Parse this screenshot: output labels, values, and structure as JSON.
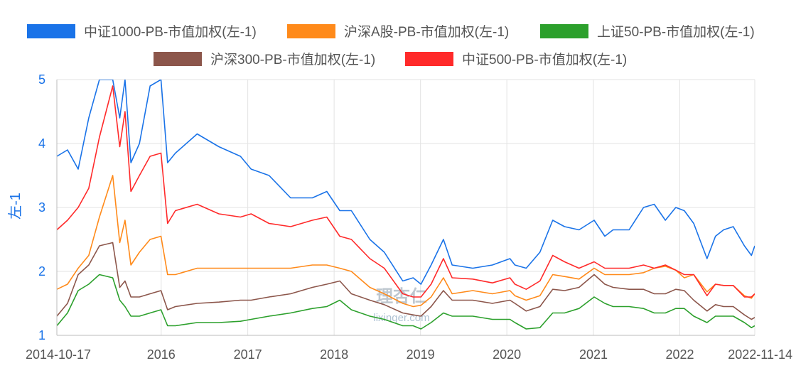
{
  "chart_data": {
    "type": "line",
    "ylabel": "左-1",
    "ylim": [
      1,
      5
    ],
    "yticks": [
      "1",
      "2",
      "3",
      "4",
      "5"
    ],
    "xlim": [
      "2014-10-17",
      "2022-11-14"
    ],
    "xticks": [
      {
        "date": "2014-10-17",
        "label": "2014-10-17"
      },
      {
        "date": "2016-01-01",
        "label": "2016"
      },
      {
        "date": "2017-01-01",
        "label": "2017"
      },
      {
        "date": "2018-01-01",
        "label": "2018"
      },
      {
        "date": "2019-01-01",
        "label": "2019"
      },
      {
        "date": "2020-01-01",
        "label": "2020"
      },
      {
        "date": "2021-01-01",
        "label": "2021"
      },
      {
        "date": "2022-01-01",
        "label": "2022"
      },
      {
        "date": "2022-11-14",
        "label": "2022-11-14"
      }
    ],
    "grid": true,
    "legend_position": "top",
    "watermark": {
      "cn": "理杏仁",
      "en": "lixinger.com"
    },
    "x": [
      "2014-10-17",
      "2014-12-01",
      "2015-01-15",
      "2015-03-01",
      "2015-04-15",
      "2015-06-10",
      "2015-07-10",
      "2015-08-01",
      "2015-08-26",
      "2015-10-01",
      "2015-11-15",
      "2015-12-31",
      "2016-01-28",
      "2016-03-01",
      "2016-06-01",
      "2016-09-01",
      "2016-12-01",
      "2017-01-15",
      "2017-04-01",
      "2017-07-01",
      "2017-10-01",
      "2017-12-01",
      "2018-01-25",
      "2018-03-15",
      "2018-06-01",
      "2018-08-01",
      "2018-10-18",
      "2018-12-01",
      "2019-01-03",
      "2019-02-15",
      "2019-04-08",
      "2019-05-15",
      "2019-08-10",
      "2019-11-01",
      "2020-01-14",
      "2020-02-04",
      "2020-03-23",
      "2020-05-20",
      "2020-07-13",
      "2020-09-01",
      "2020-11-01",
      "2021-01-04",
      "2021-02-18",
      "2021-03-25",
      "2021-06-01",
      "2021-08-01",
      "2021-09-15",
      "2021-11-01",
      "2021-12-15",
      "2022-01-20",
      "2022-03-01",
      "2022-04-26",
      "2022-06-01",
      "2022-07-05",
      "2022-08-15",
      "2022-10-01",
      "2022-10-31",
      "2022-11-14"
    ],
    "series": [
      {
        "name": "中证1000-PB-市值加权(左-1)",
        "color": "#1a73e8",
        "values": [
          3.8,
          3.9,
          3.6,
          4.4,
          5.0,
          5.0,
          4.4,
          5.0,
          3.7,
          4.0,
          4.9,
          5.0,
          3.7,
          3.85,
          4.15,
          3.95,
          3.8,
          3.6,
          3.5,
          3.15,
          3.15,
          3.25,
          2.95,
          2.95,
          2.5,
          2.3,
          1.85,
          1.9,
          1.8,
          2.1,
          2.5,
          2.1,
          2.05,
          2.1,
          2.2,
          2.1,
          2.05,
          2.3,
          2.8,
          2.7,
          2.65,
          2.8,
          2.55,
          2.65,
          2.65,
          3.0,
          3.05,
          2.8,
          3.0,
          2.95,
          2.75,
          2.2,
          2.55,
          2.65,
          2.7,
          2.4,
          2.25,
          2.4
        ]
      },
      {
        "name": "沪深A股-PB-市值加权(左-1)",
        "color": "#ff8a1a",
        "values": [
          1.72,
          1.8,
          2.05,
          2.25,
          2.85,
          3.5,
          2.45,
          2.8,
          2.1,
          2.3,
          2.5,
          2.55,
          1.95,
          1.95,
          2.05,
          2.05,
          2.05,
          2.05,
          2.05,
          2.05,
          2.1,
          2.1,
          2.05,
          2.0,
          1.75,
          1.65,
          1.5,
          1.45,
          1.47,
          1.6,
          1.9,
          1.65,
          1.7,
          1.65,
          1.7,
          1.62,
          1.55,
          1.62,
          1.95,
          1.92,
          1.88,
          2.05,
          1.95,
          1.95,
          1.95,
          1.98,
          2.05,
          2.08,
          2.02,
          1.9,
          1.95,
          1.68,
          1.8,
          1.78,
          1.78,
          1.62,
          1.58,
          1.65
        ]
      },
      {
        "name": "上证50-PB-市值加权(左-1)",
        "color": "#2ca02c",
        "values": [
          1.15,
          1.35,
          1.7,
          1.8,
          1.95,
          1.9,
          1.55,
          1.45,
          1.3,
          1.3,
          1.35,
          1.4,
          1.15,
          1.15,
          1.2,
          1.2,
          1.22,
          1.25,
          1.3,
          1.35,
          1.42,
          1.45,
          1.55,
          1.4,
          1.3,
          1.25,
          1.15,
          1.15,
          1.1,
          1.2,
          1.35,
          1.3,
          1.3,
          1.25,
          1.25,
          1.2,
          1.1,
          1.12,
          1.35,
          1.35,
          1.42,
          1.6,
          1.5,
          1.45,
          1.45,
          1.42,
          1.35,
          1.35,
          1.42,
          1.42,
          1.3,
          1.2,
          1.3,
          1.3,
          1.3,
          1.2,
          1.12,
          1.15
        ]
      },
      {
        "name": "沪深300-PB-市值加权(左-1)",
        "color": "#8c564b",
        "values": [
          1.3,
          1.5,
          1.95,
          2.1,
          2.4,
          2.45,
          1.75,
          1.85,
          1.6,
          1.6,
          1.65,
          1.7,
          1.4,
          1.45,
          1.5,
          1.52,
          1.55,
          1.55,
          1.6,
          1.65,
          1.75,
          1.8,
          1.85,
          1.65,
          1.55,
          1.48,
          1.35,
          1.32,
          1.3,
          1.45,
          1.7,
          1.55,
          1.55,
          1.5,
          1.55,
          1.5,
          1.38,
          1.45,
          1.72,
          1.7,
          1.75,
          1.95,
          1.8,
          1.75,
          1.72,
          1.72,
          1.65,
          1.65,
          1.72,
          1.7,
          1.55,
          1.38,
          1.48,
          1.45,
          1.45,
          1.32,
          1.25,
          1.28
        ]
      },
      {
        "name": "中证500-PB-市值加权(左-1)",
        "color": "#ff2a2a",
        "values": [
          2.65,
          2.8,
          3.0,
          3.3,
          4.1,
          4.9,
          3.95,
          4.5,
          3.25,
          3.5,
          3.8,
          3.85,
          2.75,
          2.95,
          3.05,
          2.9,
          2.85,
          2.9,
          2.75,
          2.7,
          2.8,
          2.85,
          2.55,
          2.5,
          2.2,
          2.05,
          1.65,
          1.6,
          1.6,
          1.8,
          2.2,
          1.9,
          1.88,
          1.82,
          1.9,
          1.8,
          1.72,
          1.85,
          2.25,
          2.15,
          2.05,
          2.15,
          2.05,
          2.05,
          2.05,
          2.1,
          2.05,
          2.1,
          2.02,
          1.95,
          1.95,
          1.62,
          1.8,
          1.78,
          1.78,
          1.6,
          1.6,
          1.65
        ]
      }
    ]
  }
}
